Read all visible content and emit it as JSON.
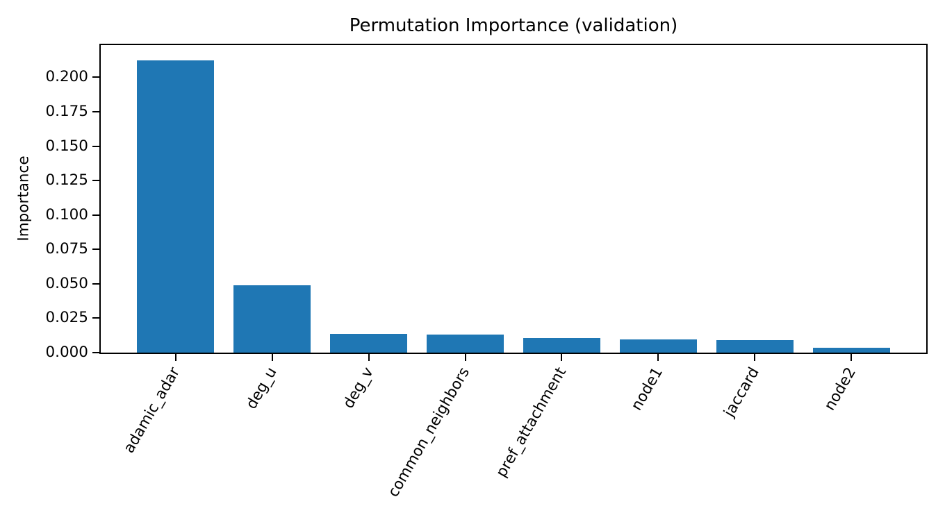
{
  "chart_data": {
    "type": "bar",
    "title": "Permutation Importance (validation)",
    "xlabel": "",
    "ylabel": "Importance",
    "categories": [
      "adamic_adar",
      "deg_u",
      "deg_v",
      "common_neighbors",
      "pref_attachment",
      "node1",
      "jaccard",
      "node2"
    ],
    "values": [
      0.2125,
      0.049,
      0.0138,
      0.0133,
      0.0106,
      0.0094,
      0.0089,
      0.0033
    ],
    "ytick_values": [
      0.0,
      0.025,
      0.05,
      0.075,
      0.1,
      0.125,
      0.15,
      0.175,
      0.2
    ],
    "ytick_labels": [
      "0.000",
      "0.025",
      "0.050",
      "0.075",
      "0.100",
      "0.125",
      "0.150",
      "0.175",
      "0.200"
    ],
    "ylim": [
      0,
      0.2234
    ],
    "bar_color": "#1f77b4",
    "axis_color": "#000000",
    "grid": false,
    "legend": null,
    "x_tick_rotation_deg": 60
  }
}
